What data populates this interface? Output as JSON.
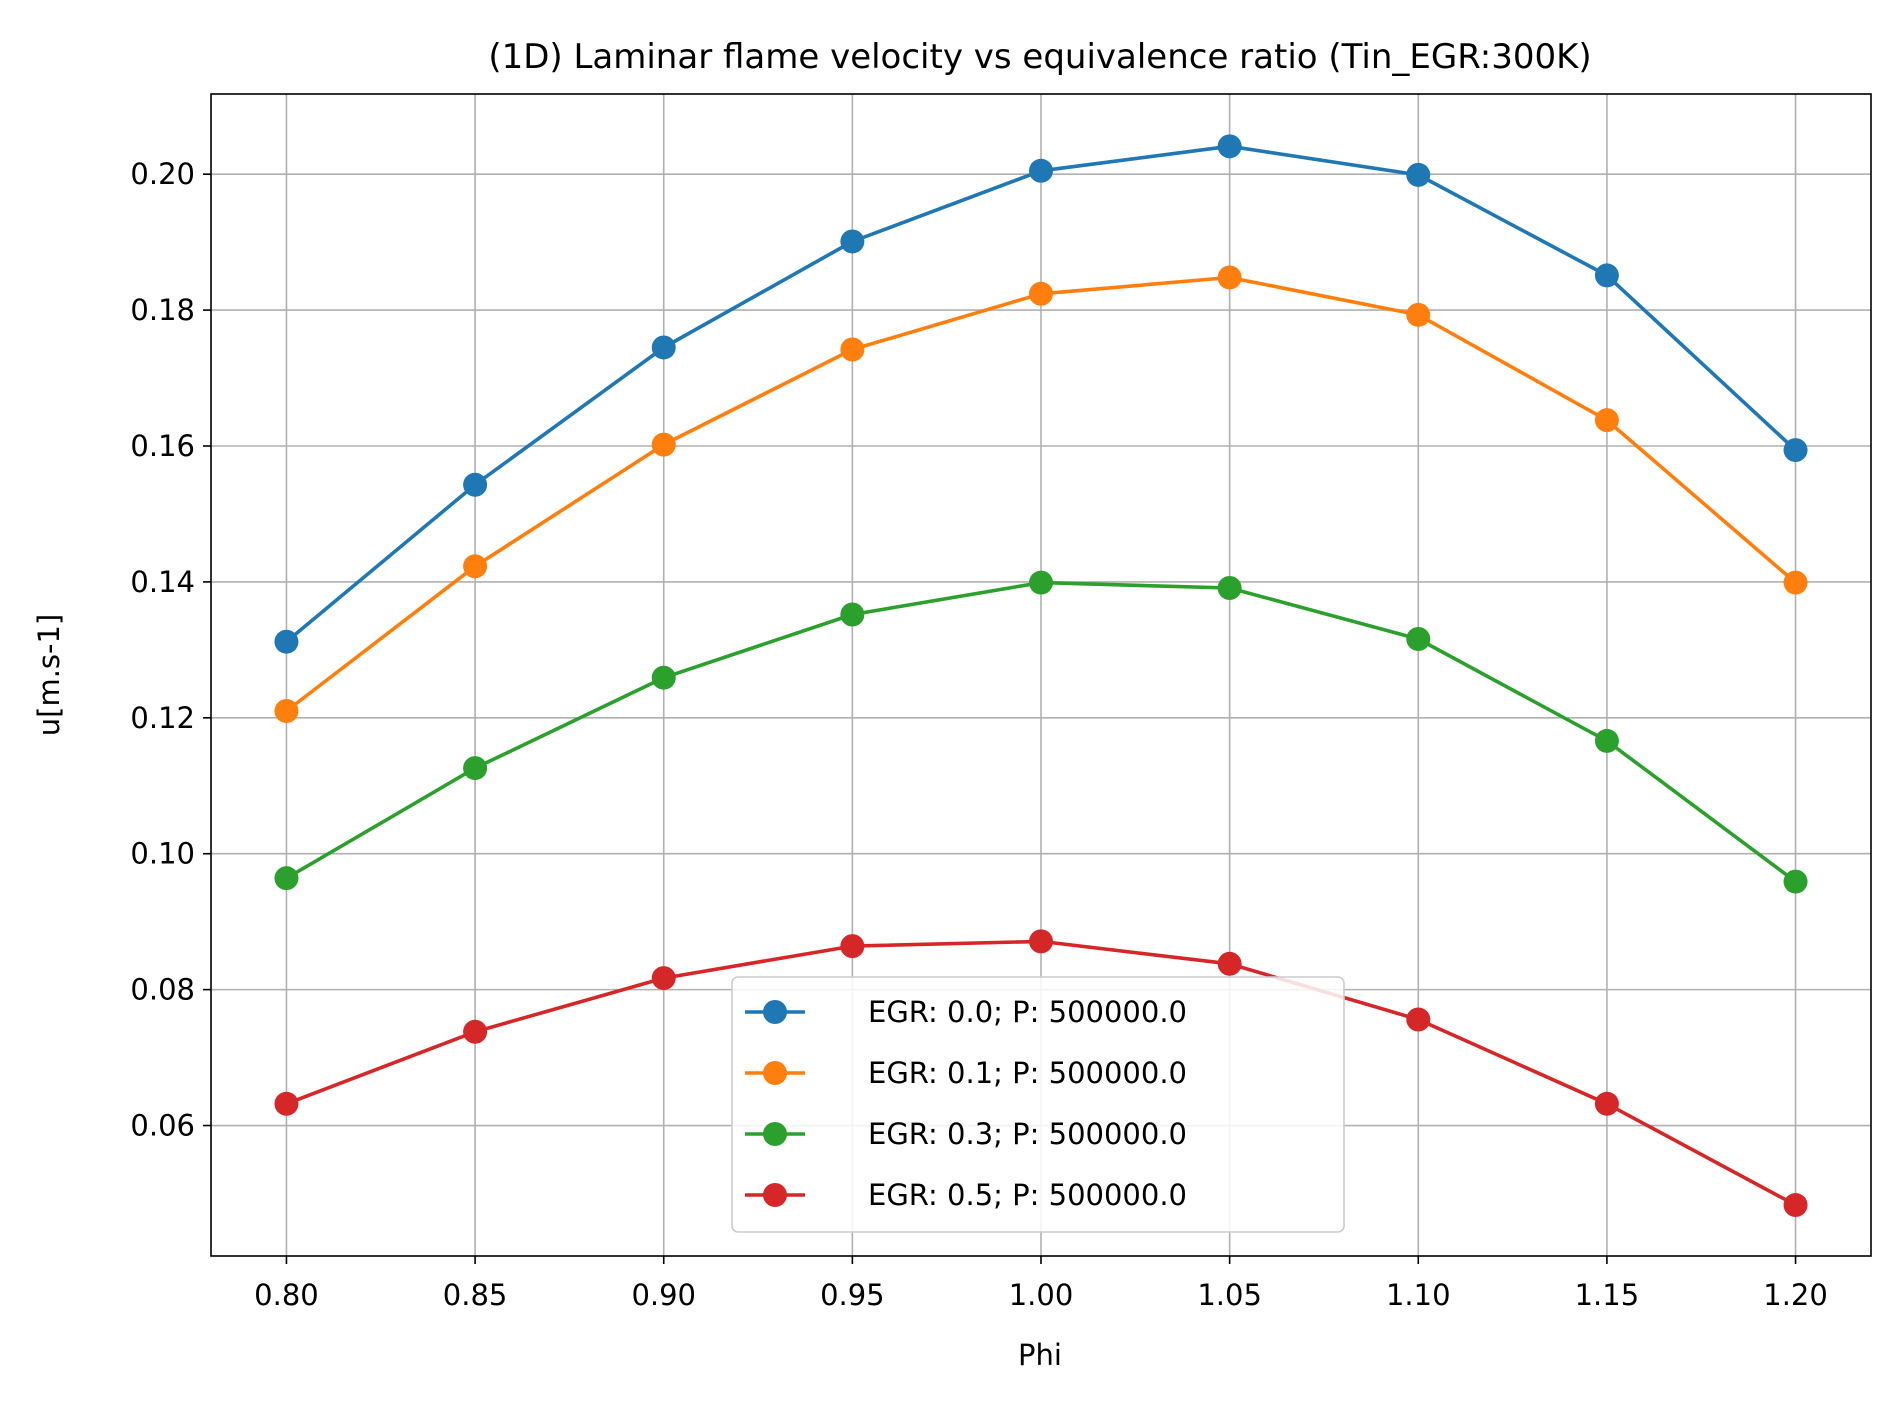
{
  "chart_data": {
    "type": "line",
    "title": "(1D) Laminar flame velocity vs equivalence ratio (Tin_EGR:300K)",
    "xlabel": "Phi",
    "ylabel": "u[m.s-1]",
    "x": [
      0.8,
      0.85,
      0.9,
      0.95,
      1.0,
      1.05,
      1.1,
      1.15,
      1.2
    ],
    "x_tick_labels": [
      "0.80",
      "0.85",
      "0.90",
      "0.95",
      "1.00",
      "1.05",
      "1.10",
      "1.15",
      "1.20"
    ],
    "y_tick_values": [
      0.06,
      0.08,
      0.1,
      0.12,
      0.14,
      0.16,
      0.18,
      0.2
    ],
    "y_tick_labels": [
      "0.06",
      "0.08",
      "0.10",
      "0.12",
      "0.14",
      "0.16",
      "0.18",
      "0.20"
    ],
    "xlim": [
      0.78,
      1.22
    ],
    "ylim": [
      0.0408,
      0.2118
    ],
    "grid": true,
    "legend_position": "bottom-center",
    "series": [
      {
        "name": "EGR: 0.0; P: 500000.0",
        "color": "#1f77b4",
        "values": [
          0.1312,
          0.1543,
          0.1745,
          0.1901,
          0.2005,
          0.2041,
          0.1999,
          0.1851,
          0.1594
        ]
      },
      {
        "name": "EGR: 0.1; P: 500000.0",
        "color": "#ff7f0e",
        "values": [
          0.121,
          0.1423,
          0.1602,
          0.1742,
          0.1824,
          0.1848,
          0.1793,
          0.1638,
          0.1399
        ]
      },
      {
        "name": "EGR: 0.3; P: 500000.0",
        "color": "#2ca02c",
        "values": [
          0.0964,
          0.1126,
          0.1259,
          0.1352,
          0.1399,
          0.1391,
          0.1316,
          0.1166,
          0.0959
        ]
      },
      {
        "name": "EGR: 0.5; P: 500000.0",
        "color": "#d62728",
        "values": [
          0.0632,
          0.0738,
          0.0817,
          0.0864,
          0.0871,
          0.0838,
          0.0756,
          0.0632,
          0.0483
        ]
      }
    ]
  }
}
